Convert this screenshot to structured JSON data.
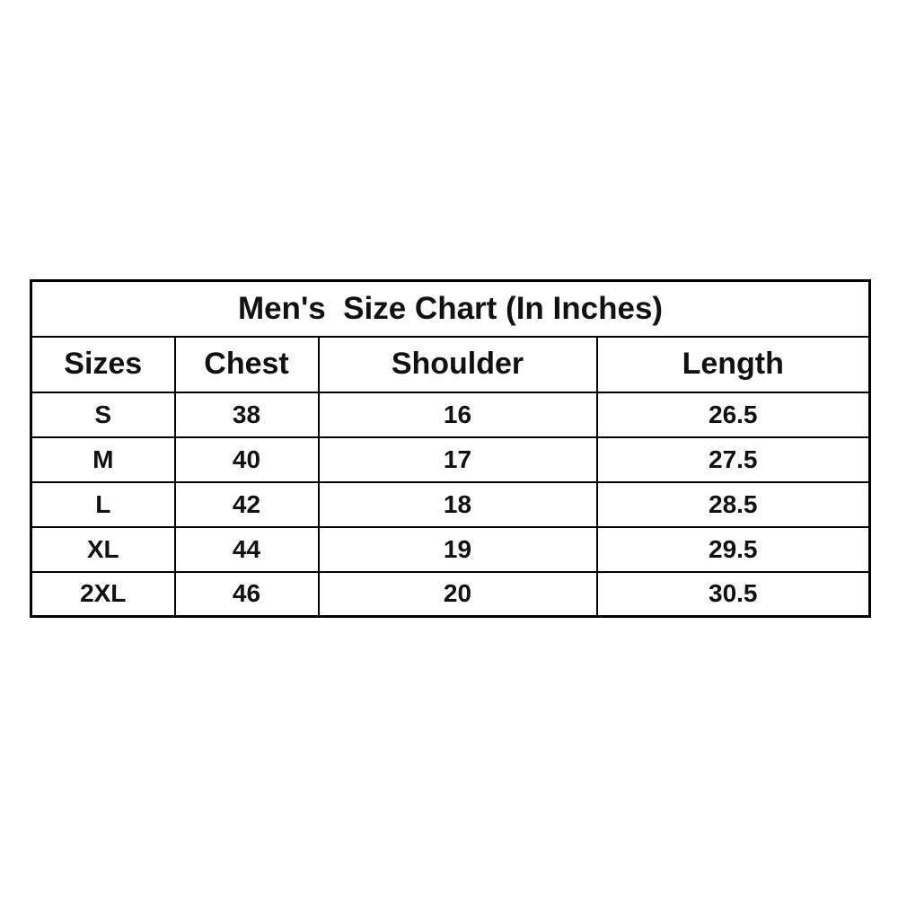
{
  "chart_data": {
    "type": "table",
    "title": "Men's  Size Chart (In Inches)",
    "columns": [
      "Sizes",
      "Chest",
      "Shoulder",
      "Length"
    ],
    "rows": [
      [
        "S",
        "38",
        "16",
        "26.5"
      ],
      [
        "M",
        "40",
        "17",
        "27.5"
      ],
      [
        "L",
        "42",
        "18",
        "28.5"
      ],
      [
        "XL",
        "44",
        "19",
        "29.5"
      ],
      [
        "2XL",
        "46",
        "20",
        "30.5"
      ]
    ],
    "text_color": "#111111",
    "border_color": "#000000",
    "background_color": "#ffffff"
  }
}
